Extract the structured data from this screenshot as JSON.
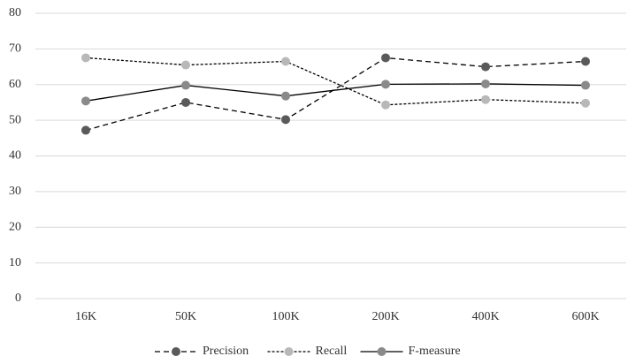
{
  "chart_data": {
    "type": "line",
    "categories": [
      "16K",
      "50K",
      "100K",
      "200K",
      "400K",
      "600K"
    ],
    "series": [
      {
        "name": "Precision",
        "color": "#5a5a5a",
        "line_color": "#000000",
        "line_style": "dashed",
        "values": [
          47.2,
          55.0,
          50.2,
          67.5,
          65.0,
          66.5
        ]
      },
      {
        "name": "Recall",
        "color": "#b8b8b8",
        "line_color": "#000000",
        "line_style": "dotted",
        "values": [
          67.5,
          65.5,
          66.5,
          54.3,
          55.8,
          54.8
        ]
      },
      {
        "name": "F-measure",
        "color": "#8a8a8a",
        "line_color": "#000000",
        "line_style": "solid",
        "values": [
          55.4,
          59.8,
          56.8,
          60.1,
          60.2,
          59.8
        ]
      }
    ],
    "ylim": [
      0,
      80
    ],
    "yticks": [
      0,
      10,
      20,
      30,
      40,
      50,
      60,
      70,
      80
    ],
    "grid": true,
    "legend": "bottom"
  }
}
